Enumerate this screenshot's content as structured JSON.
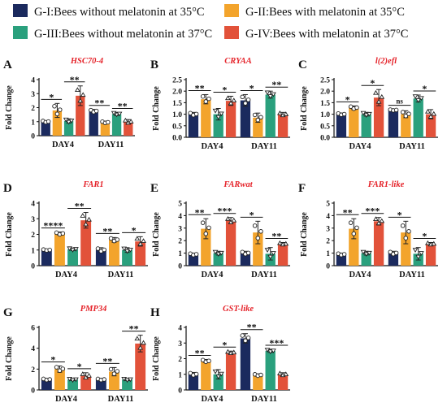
{
  "legend": {
    "items": [
      {
        "label": "G-I:Bees without melatonin at 35°C",
        "color": "#1b2a5e"
      },
      {
        "label": "G-II:Bees with melatonin at 35°C",
        "color": "#f3a42c"
      },
      {
        "label": "G-III:Bees without melatonin at 37°C",
        "color": "#2aa07d"
      },
      {
        "label": "G-IV:Bees with melatonin at 37°C",
        "color": "#e2523a"
      }
    ]
  },
  "chart_data": [
    {
      "type": "bar",
      "letter": "A",
      "title": "HSC70-4",
      "ylabel": "Fold Change",
      "ylim": [
        0,
        4
      ],
      "yticks": [
        "0",
        "1",
        "2",
        "3",
        "4"
      ],
      "categories": [
        "DAY4",
        "DAY11"
      ],
      "series": [
        {
          "values": [
            1.0,
            1.75
          ]
        },
        {
          "values": [
            1.8,
            0.95
          ]
        },
        {
          "values": [
            1.05,
            1.55
          ]
        },
        {
          "values": [
            2.85,
            1.0
          ]
        }
      ],
      "errors": [
        [
          0.08,
          0.12
        ],
        [
          0.5,
          0.08
        ],
        [
          0.15,
          0.1
        ],
        [
          0.7,
          0.15
        ]
      ],
      "sig": [
        {
          "cat": 0,
          "a": 0,
          "b": 1,
          "label": "*"
        },
        {
          "cat": 0,
          "a": 2,
          "b": 3,
          "label": "**"
        },
        {
          "cat": 1,
          "a": 0,
          "b": 1,
          "label": "**"
        },
        {
          "cat": 1,
          "a": 2,
          "b": 3,
          "label": "**"
        }
      ]
    },
    {
      "type": "bar",
      "letter": "B",
      "title": "CRYAA",
      "ylabel": "Fold Change",
      "ylim": [
        0,
        2.5
      ],
      "yticks": [
        "0.0",
        "0.5",
        "1.0",
        "1.5",
        "2.0",
        "2.5"
      ],
      "categories": [
        "DAY4",
        "DAY11"
      ],
      "series": [
        {
          "values": [
            1.0,
            1.6
          ]
        },
        {
          "values": [
            1.65,
            0.85
          ]
        },
        {
          "values": [
            1.0,
            1.85
          ]
        },
        {
          "values": [
            1.58,
            1.0
          ]
        }
      ],
      "errors": [
        [
          0.08,
          0.25
        ],
        [
          0.2,
          0.2
        ],
        [
          0.25,
          0.15
        ],
        [
          0.2,
          0.08
        ]
      ],
      "sig": [
        {
          "cat": 0,
          "a": 0,
          "b": 1,
          "label": "**"
        },
        {
          "cat": 0,
          "a": 2,
          "b": 3,
          "label": "*"
        },
        {
          "cat": 1,
          "a": 0,
          "b": 1,
          "label": "*"
        },
        {
          "cat": 1,
          "a": 2,
          "b": 3,
          "label": "**"
        }
      ]
    },
    {
      "type": "bar",
      "letter": "C",
      "title": "l(2)efl",
      "ylabel": "Fold Change",
      "ylim": [
        0,
        2.5
      ],
      "yticks": [
        "0.0",
        "0.5",
        "1.0",
        "1.5",
        "2.0",
        "2.5"
      ],
      "categories": [
        "DAY4",
        "DAY11"
      ],
      "series": [
        {
          "values": [
            1.0,
            1.18
          ]
        },
        {
          "values": [
            1.28,
            1.0
          ]
        },
        {
          "values": [
            1.0,
            1.68
          ]
        },
        {
          "values": [
            1.72,
            1.0
          ]
        }
      ],
      "errors": [
        [
          0.05,
          0.03
        ],
        [
          0.08,
          0.15
        ],
        [
          0.08,
          0.15
        ],
        [
          0.35,
          0.2
        ]
      ],
      "sig": [
        {
          "cat": 0,
          "a": 0,
          "b": 1,
          "label": "*"
        },
        {
          "cat": 0,
          "a": 2,
          "b": 3,
          "label": "*"
        },
        {
          "cat": 1,
          "a": 0,
          "b": 1,
          "label": "ns"
        },
        {
          "cat": 1,
          "a": 2,
          "b": 3,
          "label": "*"
        }
      ]
    },
    {
      "type": "bar",
      "letter": "D",
      "title": "FAR1",
      "ylabel": "Fold Change",
      "ylim": [
        0,
        4
      ],
      "yticks": [
        "0",
        "1",
        "2",
        "3",
        "4"
      ],
      "categories": [
        "DAY4",
        "DAY11"
      ],
      "series": [
        {
          "values": [
            1.0,
            1.0
          ]
        },
        {
          "values": [
            2.05,
            1.65
          ]
        },
        {
          "values": [
            1.05,
            1.0
          ]
        },
        {
          "values": [
            2.9,
            1.55
          ]
        }
      ],
      "errors": [
        [
          0.05,
          0.15
        ],
        [
          0.1,
          0.15
        ],
        [
          0.08,
          0.15
        ],
        [
          0.5,
          0.3
        ]
      ],
      "sig": [
        {
          "cat": 0,
          "a": 0,
          "b": 1,
          "label": "****"
        },
        {
          "cat": 0,
          "a": 2,
          "b": 3,
          "label": "**"
        },
        {
          "cat": 1,
          "a": 0,
          "b": 1,
          "label": "**"
        },
        {
          "cat": 1,
          "a": 2,
          "b": 3,
          "label": "*"
        }
      ]
    },
    {
      "type": "bar",
      "letter": "E",
      "title": "FARwat",
      "ylabel": "Fold Change",
      "ylim": [
        0,
        5
      ],
      "yticks": [
        "0",
        "1",
        "2",
        "3",
        "4",
        "5"
      ],
      "categories": [
        "DAY4",
        "DAY11"
      ],
      "series": [
        {
          "values": [
            0.9,
            1.0
          ]
        },
        {
          "values": [
            2.95,
            2.65
          ]
        },
        {
          "values": [
            1.0,
            0.95
          ]
        },
        {
          "values": [
            3.6,
            1.75
          ]
        }
      ],
      "errors": [
        [
          0.1,
          0.15
        ],
        [
          0.8,
          0.9
        ],
        [
          0.15,
          0.5
        ],
        [
          0.25,
          0.1
        ]
      ],
      "sig": [
        {
          "cat": 0,
          "a": 0,
          "b": 1,
          "label": "**"
        },
        {
          "cat": 0,
          "a": 2,
          "b": 3,
          "label": "***"
        },
        {
          "cat": 1,
          "a": 0,
          "b": 1,
          "label": "*"
        },
        {
          "cat": 1,
          "a": 2,
          "b": 3,
          "label": "**"
        }
      ]
    },
    {
      "type": "bar",
      "letter": "F",
      "title": "FAR1-like",
      "ylabel": "Fold Change",
      "ylim": [
        0,
        5
      ],
      "yticks": [
        "0",
        "1",
        "2",
        "3",
        "4",
        "5"
      ],
      "categories": [
        "DAY4",
        "DAY11"
      ],
      "series": [
        {
          "values": [
            0.9,
            1.0
          ]
        },
        {
          "values": [
            2.95,
            2.65
          ]
        },
        {
          "values": [
            1.0,
            0.95
          ]
        },
        {
          "values": [
            3.55,
            1.75
          ]
        }
      ],
      "errors": [
        [
          0.1,
          0.15
        ],
        [
          0.8,
          0.9
        ],
        [
          0.15,
          0.5
        ],
        [
          0.3,
          0.1
        ]
      ],
      "sig": [
        {
          "cat": 0,
          "a": 0,
          "b": 1,
          "label": "**"
        },
        {
          "cat": 0,
          "a": 2,
          "b": 3,
          "label": "***"
        },
        {
          "cat": 1,
          "a": 0,
          "b": 1,
          "label": "*"
        },
        {
          "cat": 1,
          "a": 2,
          "b": 3,
          "label": "*"
        }
      ]
    },
    {
      "type": "bar",
      "letter": "G",
      "title": "PMP34",
      "ylabel": "Fold Change",
      "ylim": [
        0,
        6
      ],
      "yticks": [
        "0",
        "2",
        "4",
        "6"
      ],
      "categories": [
        "DAY4",
        "DAY11"
      ],
      "series": [
        {
          "values": [
            1.0,
            1.0
          ]
        },
        {
          "values": [
            2.0,
            1.75
          ]
        },
        {
          "values": [
            1.0,
            1.0
          ]
        },
        {
          "values": [
            1.35,
            4.45
          ]
        }
      ],
      "errors": [
        [
          0.1,
          0.1
        ],
        [
          0.3,
          0.4
        ],
        [
          0.1,
          0.1
        ],
        [
          0.3,
          0.8
        ]
      ],
      "sig": [
        {
          "cat": 0,
          "a": 0,
          "b": 1,
          "label": "*"
        },
        {
          "cat": 0,
          "a": 2,
          "b": 3,
          "label": "*"
        },
        {
          "cat": 1,
          "a": 0,
          "b": 1,
          "label": "**"
        },
        {
          "cat": 1,
          "a": 2,
          "b": 3,
          "label": "**"
        }
      ]
    },
    {
      "type": "bar",
      "letter": "H",
      "title": "GST-like",
      "ylabel": "Fold Change",
      "ylim": [
        0,
        4
      ],
      "yticks": [
        "0",
        "1",
        "2",
        "3",
        "4"
      ],
      "categories": [
        "DAY4",
        "DAY11"
      ],
      "series": [
        {
          "values": [
            1.0,
            3.3
          ]
        },
        {
          "values": [
            1.85,
            0.95
          ]
        },
        {
          "values": [
            1.0,
            2.5
          ]
        },
        {
          "values": [
            2.4,
            1.0
          ]
        }
      ],
      "errors": [
        [
          0.12,
          0.3
        ],
        [
          0.1,
          0.08
        ],
        [
          0.3,
          0.1
        ],
        [
          0.08,
          0.1
        ]
      ],
      "sig": [
        {
          "cat": 0,
          "a": 0,
          "b": 1,
          "label": "**"
        },
        {
          "cat": 0,
          "a": 2,
          "b": 3,
          "label": "*"
        },
        {
          "cat": 1,
          "a": 0,
          "b": 1,
          "label": "**"
        },
        {
          "cat": 1,
          "a": 2,
          "b": 3,
          "label": "***"
        }
      ]
    }
  ]
}
